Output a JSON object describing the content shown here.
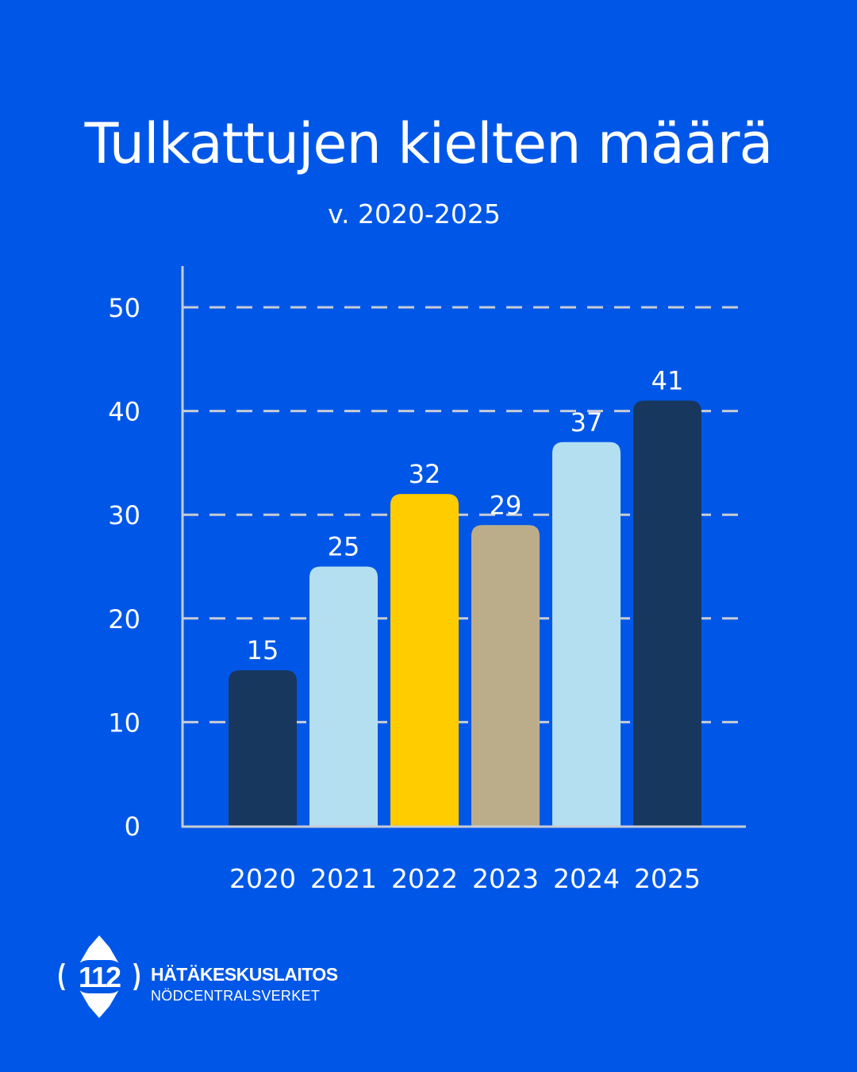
{
  "chart_data": {
    "type": "bar",
    "title": "Tulkattujen kielten määrä",
    "subtitle": "v. 2020-2025",
    "categories": [
      "2020",
      "2021",
      "2022",
      "2023",
      "2024",
      "2025"
    ],
    "values": [
      15,
      25,
      32,
      29,
      37,
      41
    ],
    "bar_colors": [
      "#18375f",
      "#b4dff0",
      "#ffcc00",
      "#bcad8a",
      "#b4dff0",
      "#18375f"
    ],
    "ylim": [
      0,
      50
    ],
    "yticks": [
      0,
      10,
      20,
      30,
      40,
      50
    ],
    "grid": true,
    "data_labels": true,
    "xlabel": "",
    "ylabel": ""
  },
  "colors": {
    "background": "#0057e7",
    "grid": "#c8ccd6",
    "axis": "#c8ccd6",
    "text": "#ffffff"
  },
  "logo": {
    "emblem_text": "112",
    "line1": "HÄTÄKESKUSLAITOS",
    "line2": "NÖDCENTRALSVERKET"
  }
}
